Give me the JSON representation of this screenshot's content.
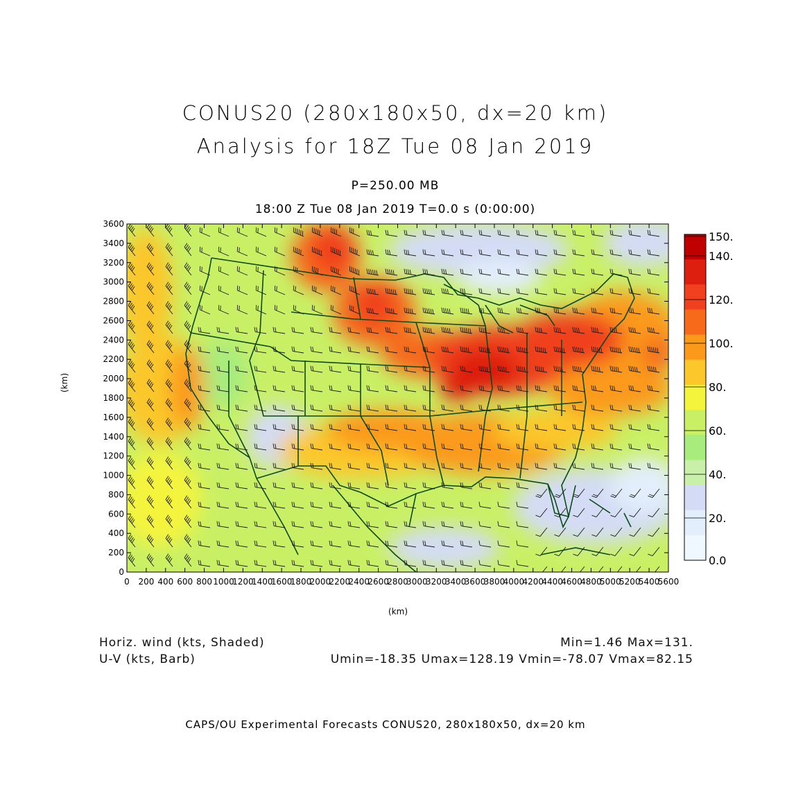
{
  "title": {
    "line1": "CONUS20 (280x180x50, dx=20 km)",
    "line2": "Analysis for 18Z Tue 08 Jan 2019"
  },
  "subtitle": {
    "pressure": "P=250.00 MB",
    "valid_time": "18:00 Z Tue 08 Jan 2019    T=0.0 s (0:00:00)"
  },
  "axes": {
    "xlabel": "(km)",
    "ylabel": "(km)",
    "xlim": [
      0,
      5600
    ],
    "ylim": [
      0,
      3600
    ],
    "x_ticks": [
      "0",
      "200",
      "400",
      "600",
      "800",
      "1000",
      "1200",
      "1400",
      "1600",
      "1800",
      "2000",
      "2200",
      "2400",
      "2600",
      "2800",
      "3000",
      "3200",
      "3400",
      "3600",
      "3800",
      "4000",
      "4200",
      "4400",
      "4600",
      "4800",
      "5000",
      "5200",
      "5400",
      "5600"
    ],
    "y_ticks": [
      "0",
      "200",
      "400",
      "600",
      "800",
      "1000",
      "1200",
      "1400",
      "1600",
      "1800",
      "2000",
      "2200",
      "2400",
      "2600",
      "2800",
      "3000",
      "3200",
      "3400",
      "3600"
    ]
  },
  "colorbar": {
    "labels": [
      "150.",
      "140.",
      "120.",
      "100.",
      "80.",
      "60.",
      "40.",
      "20.",
      "0.0"
    ],
    "colors": [
      "#c00000",
      "#dd1f10",
      "#f0401f",
      "#f66a1a",
      "#fb9a1a",
      "#fbc72a",
      "#f4f43c",
      "#c9f065",
      "#a8ec7e",
      "#c8f0a8",
      "#d3dcf4",
      "#e2eefb",
      "#eef8fe"
    ]
  },
  "info": {
    "field1": "Horiz. wind (kts, Shaded)",
    "field2": "U-V (kts, Barb)",
    "minmax": "Min=1.46  Max=131.",
    "uv_minmax": "Umin=-18.35  Umax=128.19  Vmin=-78.07  Vmax=82.15"
  },
  "footer": "CAPS/OU Experimental Forecasts   CONUS20, 280x180x50, dx=20 km",
  "map_colors": {
    "border": "#0a4a14",
    "barb": "#1a1a1a"
  }
}
